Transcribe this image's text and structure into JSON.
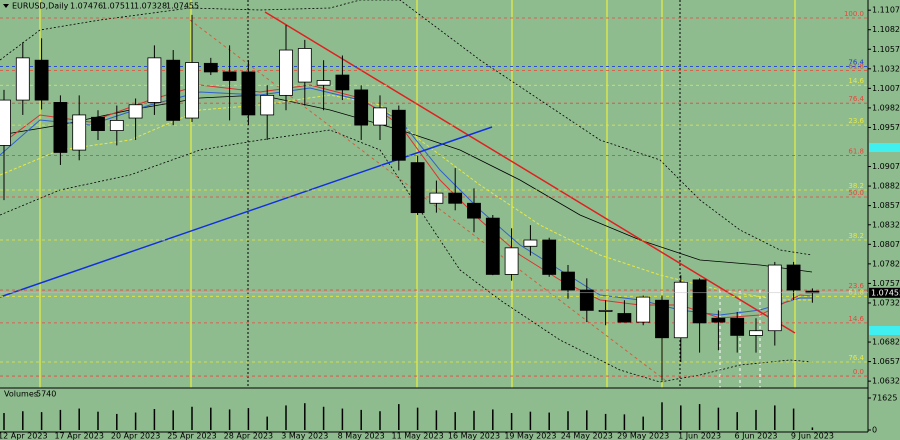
{
  "chart_data": {
    "type": "candlestick",
    "title": "EURUSD,Daily",
    "background": "#8fbc8f",
    "up_color": "#ffffff",
    "down_color": "#000000",
    "categories": [
      null,
      "12 Apr 2023",
      null,
      null,
      "17 Apr 2023",
      null,
      null,
      "20 Apr 2023",
      null,
      null,
      "25 Apr 2023",
      null,
      null,
      "28 Apr 2023",
      null,
      null,
      "3 May 2023",
      null,
      null,
      "8 May 2023",
      null,
      null,
      "11 May 2023",
      null,
      null,
      "16 May 2023",
      null,
      null,
      "19 May 2023",
      null,
      null,
      "24 May 2023",
      null,
      null,
      "29 May 2023",
      null,
      null,
      "1 Jun 2023",
      null,
      null,
      "6 Jun 2023",
      null,
      null,
      "9 Jun 2023"
    ],
    "open": [
      1.0934,
      1.0992,
      1.1043,
      1.0989,
      1.0928,
      1.097,
      1.0953,
      1.0969,
      1.0989,
      1.1043,
      1.0969,
      1.1039,
      1.1028,
      1.1028,
      1.0973,
      1.0998,
      1.1015,
      1.1011,
      1.1024,
      1.1005,
      1.096,
      1.0979,
      1.0912,
      1.086,
      1.0873,
      1.086,
      1.0841,
      1.0769,
      1.0805,
      1.0813,
      1.0772,
      1.0749,
      1.0723,
      1.0719,
      1.0708,
      1.0736,
      1.0688,
      1.0762,
      1.0713,
      1.0713,
      1.0691,
      1.0697,
      1.0781,
      1.07476
    ],
    "high": [
      1.1005,
      1.1066,
      1.1071,
      1.0998,
      1.0998,
      1.0979,
      1.0985,
      1.0994,
      1.1062,
      1.1056,
      1.1101,
      1.1046,
      1.1062,
      1.1043,
      1.1011,
      1.1088,
      1.1069,
      1.1043,
      1.1049,
      1.1011,
      1.0998,
      1.0985,
      1.0921,
      1.0889,
      1.0905,
      1.0879,
      1.0845,
      1.0828,
      1.0832,
      1.0816,
      1.0781,
      1.0764,
      1.0736,
      1.0736,
      1.0742,
      1.0742,
      1.0768,
      1.0764,
      1.0723,
      1.0721,
      1.0713,
      1.0785,
      1.0785,
      1.07511
    ],
    "low": [
      1.0864,
      1.0973,
      1.098,
      1.0909,
      1.0915,
      1.0941,
      1.0934,
      1.0941,
      1.0973,
      1.096,
      1.0964,
      1.1024,
      1.0966,
      1.096,
      1.0941,
      1.0979,
      1.0985,
      1.0979,
      1.0992,
      1.0941,
      1.0941,
      1.0902,
      1.0845,
      1.0848,
      1.0851,
      1.0823,
      1.0768,
      1.0761,
      1.0793,
      1.0766,
      1.0738,
      1.0708,
      1.0704,
      1.0708,
      1.0704,
      1.0633,
      1.0657,
      1.0669,
      1.0672,
      1.0669,
      1.0669,
      1.0678,
      1.0736,
      1.07328
    ],
    "close": [
      1.0992,
      1.1046,
      1.0992,
      1.0925,
      1.0973,
      1.0953,
      1.0966,
      1.0986,
      1.1046,
      1.0966,
      1.104,
      1.1028,
      1.1017,
      1.0973,
      1.0998,
      1.1056,
      1.1058,
      1.1017,
      1.1005,
      1.096,
      1.0982,
      1.0915,
      1.0848,
      1.0873,
      1.086,
      1.0841,
      1.0769,
      1.0803,
      1.0813,
      1.0769,
      1.0749,
      1.0723,
      1.0723,
      1.0708,
      1.074,
      1.0688,
      1.0759,
      1.0707,
      1.0708,
      1.0691,
      1.0697,
      1.0781,
      1.0749,
      1.07455
    ],
    "ylim": [
      1.0625,
      1.112
    ],
    "yticks": [
      {
        "value": 1.1107,
        "label": "1.11070"
      },
      {
        "value": 1.1082,
        "label": "1.10820"
      },
      {
        "value": 1.1057,
        "label": "1.10570"
      },
      {
        "value": 1.1032,
        "label": "1.10320"
      },
      {
        "value": 1.1007,
        "label": "1.10070"
      },
      {
        "value": 1.0982,
        "label": "1.09820"
      },
      {
        "value": 1.0957,
        "label": "1.09570"
      },
      {
        "value": 1.0907,
        "label": "1.09070"
      },
      {
        "value": 1.0882,
        "label": "1.08820"
      },
      {
        "value": 1.0857,
        "label": "1.08570"
      },
      1.08325,
      1.08075,
      1.07825,
      1.07575,
      1.07325,
      1.06825,
      1.06575,
      1.06325
    ],
    "levels": [
      {
        "label": "100.0",
        "value": 1.1097,
        "color": "#e8463c"
      },
      {
        "label": "76.4",
        "value": 1.1035,
        "color": "#2040d0"
      },
      {
        "label": "61.8",
        "value": 1.103,
        "color": "#e8463c"
      },
      {
        "label": "14.6",
        "value": 1.1011,
        "color": "#e8e840"
      },
      {
        "label": "76.4",
        "value": 1.0988,
        "color": "#e8463c"
      },
      {
        "label": "23.6",
        "value": 1.096,
        "color": "#e8e840"
      },
      {
        "label": "61.8",
        "value": 1.0921,
        "color": "#e8463c"
      },
      {
        "label": "38.2",
        "value": 1.0877,
        "color": "#e8e840"
      },
      {
        "label": "50.0",
        "value": 1.0868,
        "color": "#e8463c"
      },
      {
        "label": "38.2",
        "value": 1.0813,
        "color": "#e8e840"
      },
      {
        "label": "23.6",
        "value": 1.0749,
        "color": "#e8463c"
      },
      {
        "label": "61.8",
        "value": 1.0741,
        "color": "#e8e840"
      },
      {
        "label": "14.6",
        "value": 1.0707,
        "color": "#e8463c"
      },
      {
        "label": "76.4",
        "value": 1.0657,
        "color": "#e8e840"
      },
      {
        "label": "0.0",
        "value": 1.0639,
        "color": "#e8463c"
      }
    ],
    "volume_label": "Volumes",
    "volumes": [
      38000,
      42000,
      40000,
      45000,
      48000,
      41000,
      36000,
      39000,
      47000,
      44000,
      52000,
      50000,
      46000,
      49000,
      30000,
      55000,
      60000,
      52000,
      48000,
      45000,
      42000,
      58000,
      50000,
      44000,
      40000,
      43000,
      46000,
      38000,
      41000,
      39000,
      42000,
      44000,
      36000,
      35000,
      30000,
      62000,
      55000,
      58000,
      50000,
      40000,
      45000,
      55000,
      48000,
      5740
    ],
    "volume_ylim": [
      0,
      71625
    ],
    "volume_yticks": [
      71625,
      0
    ]
  }
}
